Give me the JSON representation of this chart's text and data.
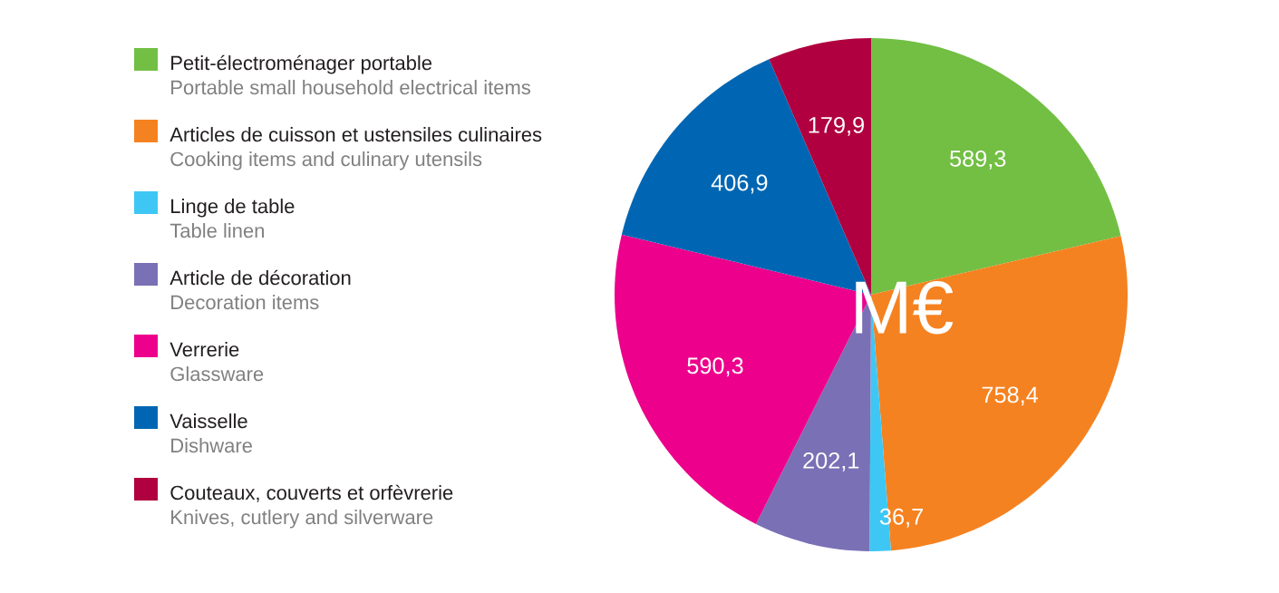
{
  "chart_data": {
    "type": "pie",
    "title": "M€",
    "categories": [
      "Petit-électroménager portable",
      "Articles de cuisson et ustensiles culinaires",
      "Linge de table",
      "Article de décoration",
      "Verrerie",
      "Vaisselle",
      "Couteaux, couverts et orfèvrerie"
    ],
    "values": [
      589.3,
      758.4,
      36.7,
      202.1,
      590.3,
      406.9,
      179.9
    ],
    "value_labels": [
      "589,3",
      "758,4",
      "36,7",
      "202,1",
      "590,3",
      "406,9",
      "179,9"
    ],
    "colors": [
      "#72bf44",
      "#f58220",
      "#3ec7f4",
      "#7a70b5",
      "#ec008c",
      "#0066b3",
      "#b0003f"
    ],
    "annotations": [
      "Portable small household electrical items",
      "Cooking items and culinary utensils",
      "Table linen",
      "Decoration items",
      "Glassware",
      "Dishware",
      "Knives, cutlery and silverware"
    ],
    "legend": "left"
  }
}
